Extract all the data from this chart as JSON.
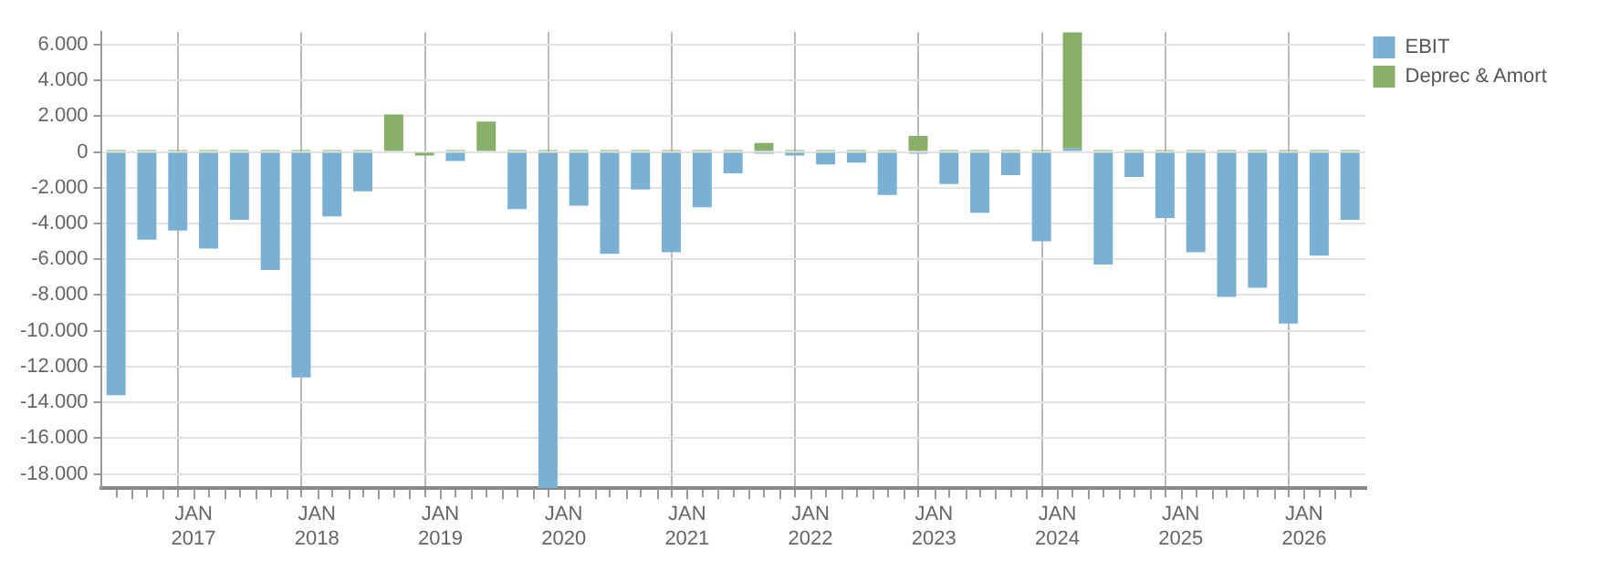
{
  "chart_data": {
    "type": "bar",
    "stacked": true,
    "x": [
      "2016-05-15",
      "2016-08-15",
      "2016-11-15",
      "2017-02-15",
      "2017-05-15",
      "2017-08-15",
      "2017-11-15",
      "2018-02-15",
      "2018-05-15",
      "2018-08-15",
      "2018-11-15",
      "2019-02-15",
      "2019-05-15",
      "2019-08-15",
      "2019-11-15",
      "2020-02-15",
      "2020-05-15",
      "2020-08-15",
      "2020-11-15",
      "2021-02-15",
      "2021-05-15",
      "2021-08-15",
      "2021-11-15",
      "2022-02-15",
      "2022-05-15",
      "2022-08-15",
      "2022-11-15",
      "2023-02-15",
      "2023-05-15",
      "2023-08-15",
      "2023-11-15",
      "2024-02-15",
      "2024-05-15",
      "2024-08-15",
      "2024-11-15",
      "2025-02-15",
      "2025-05-15",
      "2025-08-15",
      "2025-11-15",
      "2026-02-15",
      "2026-05-15"
    ],
    "series": [
      {
        "name": "EBIT",
        "color": "#7ab0d4",
        "values": [
          -13600,
          -4900,
          -4400,
          -5400,
          -3800,
          -6600,
          -12600,
          -3600,
          -2200,
          null,
          null,
          -500,
          null,
          -3200,
          -18800,
          -3000,
          -5700,
          -2100,
          -5600,
          -3100,
          -1200,
          -100,
          -200,
          -700,
          -600,
          -2400,
          -100,
          -1800,
          -3400,
          -1300,
          -5000,
          200,
          -6300,
          -1400,
          -3700,
          -5600,
          -8100,
          -7600,
          -9600,
          -5800,
          -3800
        ]
      },
      {
        "name": "Deprec & Amort",
        "color": "#88b06a",
        "values": [
          100,
          100,
          100,
          100,
          100,
          100,
          100,
          100,
          100,
          2100,
          -200,
          100,
          1700,
          100,
          100,
          100,
          100,
          100,
          100,
          100,
          100,
          500,
          100,
          100,
          100,
          100,
          900,
          100,
          100,
          100,
          100,
          6500,
          100,
          100,
          100,
          100,
          100,
          100,
          100,
          100,
          100
        ]
      }
    ],
    "xlim": [
      "2016-04",
      "2026-07"
    ],
    "xticks": [
      {
        "value": "2016-07",
        "label": null
      },
      {
        "value": "2016-10",
        "label": null
      },
      {
        "value": "2017-01",
        "label": "JAN\n2017"
      },
      {
        "value": "2017-04",
        "label": null
      },
      {
        "value": "2017-07",
        "label": null
      },
      {
        "value": "2017-10",
        "label": null
      },
      {
        "value": "2018-01",
        "label": "JAN\n2018"
      },
      {
        "value": "2018-04",
        "label": null
      },
      {
        "value": "2018-07",
        "label": null
      },
      {
        "value": "2018-10",
        "label": null
      },
      {
        "value": "2019-01",
        "label": "JAN\n2019"
      },
      {
        "value": "2019-04",
        "label": null
      },
      {
        "value": "2019-07",
        "label": null
      },
      {
        "value": "2019-10",
        "label": null
      },
      {
        "value": "2020-01",
        "label": "JAN\n2020"
      },
      {
        "value": "2020-04",
        "label": null
      },
      {
        "value": "2020-07",
        "label": null
      },
      {
        "value": "2020-10",
        "label": null
      },
      {
        "value": "2021-01",
        "label": "JAN\n2021"
      },
      {
        "value": "2021-04",
        "label": null
      },
      {
        "value": "2021-07",
        "label": null
      },
      {
        "value": "2021-10",
        "label": null
      },
      {
        "value": "2022-01",
        "label": "JAN\n2022"
      },
      {
        "value": "2022-04",
        "label": null
      },
      {
        "value": "2022-07",
        "label": null
      },
      {
        "value": "2022-10",
        "label": null
      },
      {
        "value": "2023-01",
        "label": "JAN\n2023"
      },
      {
        "value": "2023-04",
        "label": null
      },
      {
        "value": "2023-07",
        "label": null
      },
      {
        "value": "2023-10",
        "label": null
      },
      {
        "value": "2024-01",
        "label": "JAN\n2024"
      },
      {
        "value": "2024-04",
        "label": null
      },
      {
        "value": "2024-07",
        "label": null
      },
      {
        "value": "2024-10",
        "label": null
      },
      {
        "value": "2025-01",
        "label": "JAN\n2025"
      },
      {
        "value": "2025-04",
        "label": null
      },
      {
        "value": "2025-07",
        "label": null
      },
      {
        "value": "2025-10",
        "label": null
      },
      {
        "value": "2026-01",
        "label": "JAN\n2026"
      },
      {
        "value": "2026-04",
        "label": null
      }
    ],
    "ylim": [
      -18800,
      6700
    ],
    "yticks": [
      {
        "value": -18000,
        "label": "-18.000"
      },
      {
        "value": -16000,
        "label": "-16.000"
      },
      {
        "value": -14000,
        "label": "-14.000"
      },
      {
        "value": -12000,
        "label": "-12.000"
      },
      {
        "value": -10000,
        "label": "-10.000"
      },
      {
        "value": -8000,
        "label": "-8.000"
      },
      {
        "value": -6000,
        "label": "-6.000"
      },
      {
        "value": -4000,
        "label": "-4.000"
      },
      {
        "value": -2000,
        "label": "-2.000"
      },
      0,
      {
        "value": 2000,
        "label": "2.000"
      },
      {
        "value": 4000,
        "label": "4.000"
      },
      {
        "value": 6000,
        "label": "6.000"
      }
    ],
    "grid": true,
    "legend": "top right"
  }
}
